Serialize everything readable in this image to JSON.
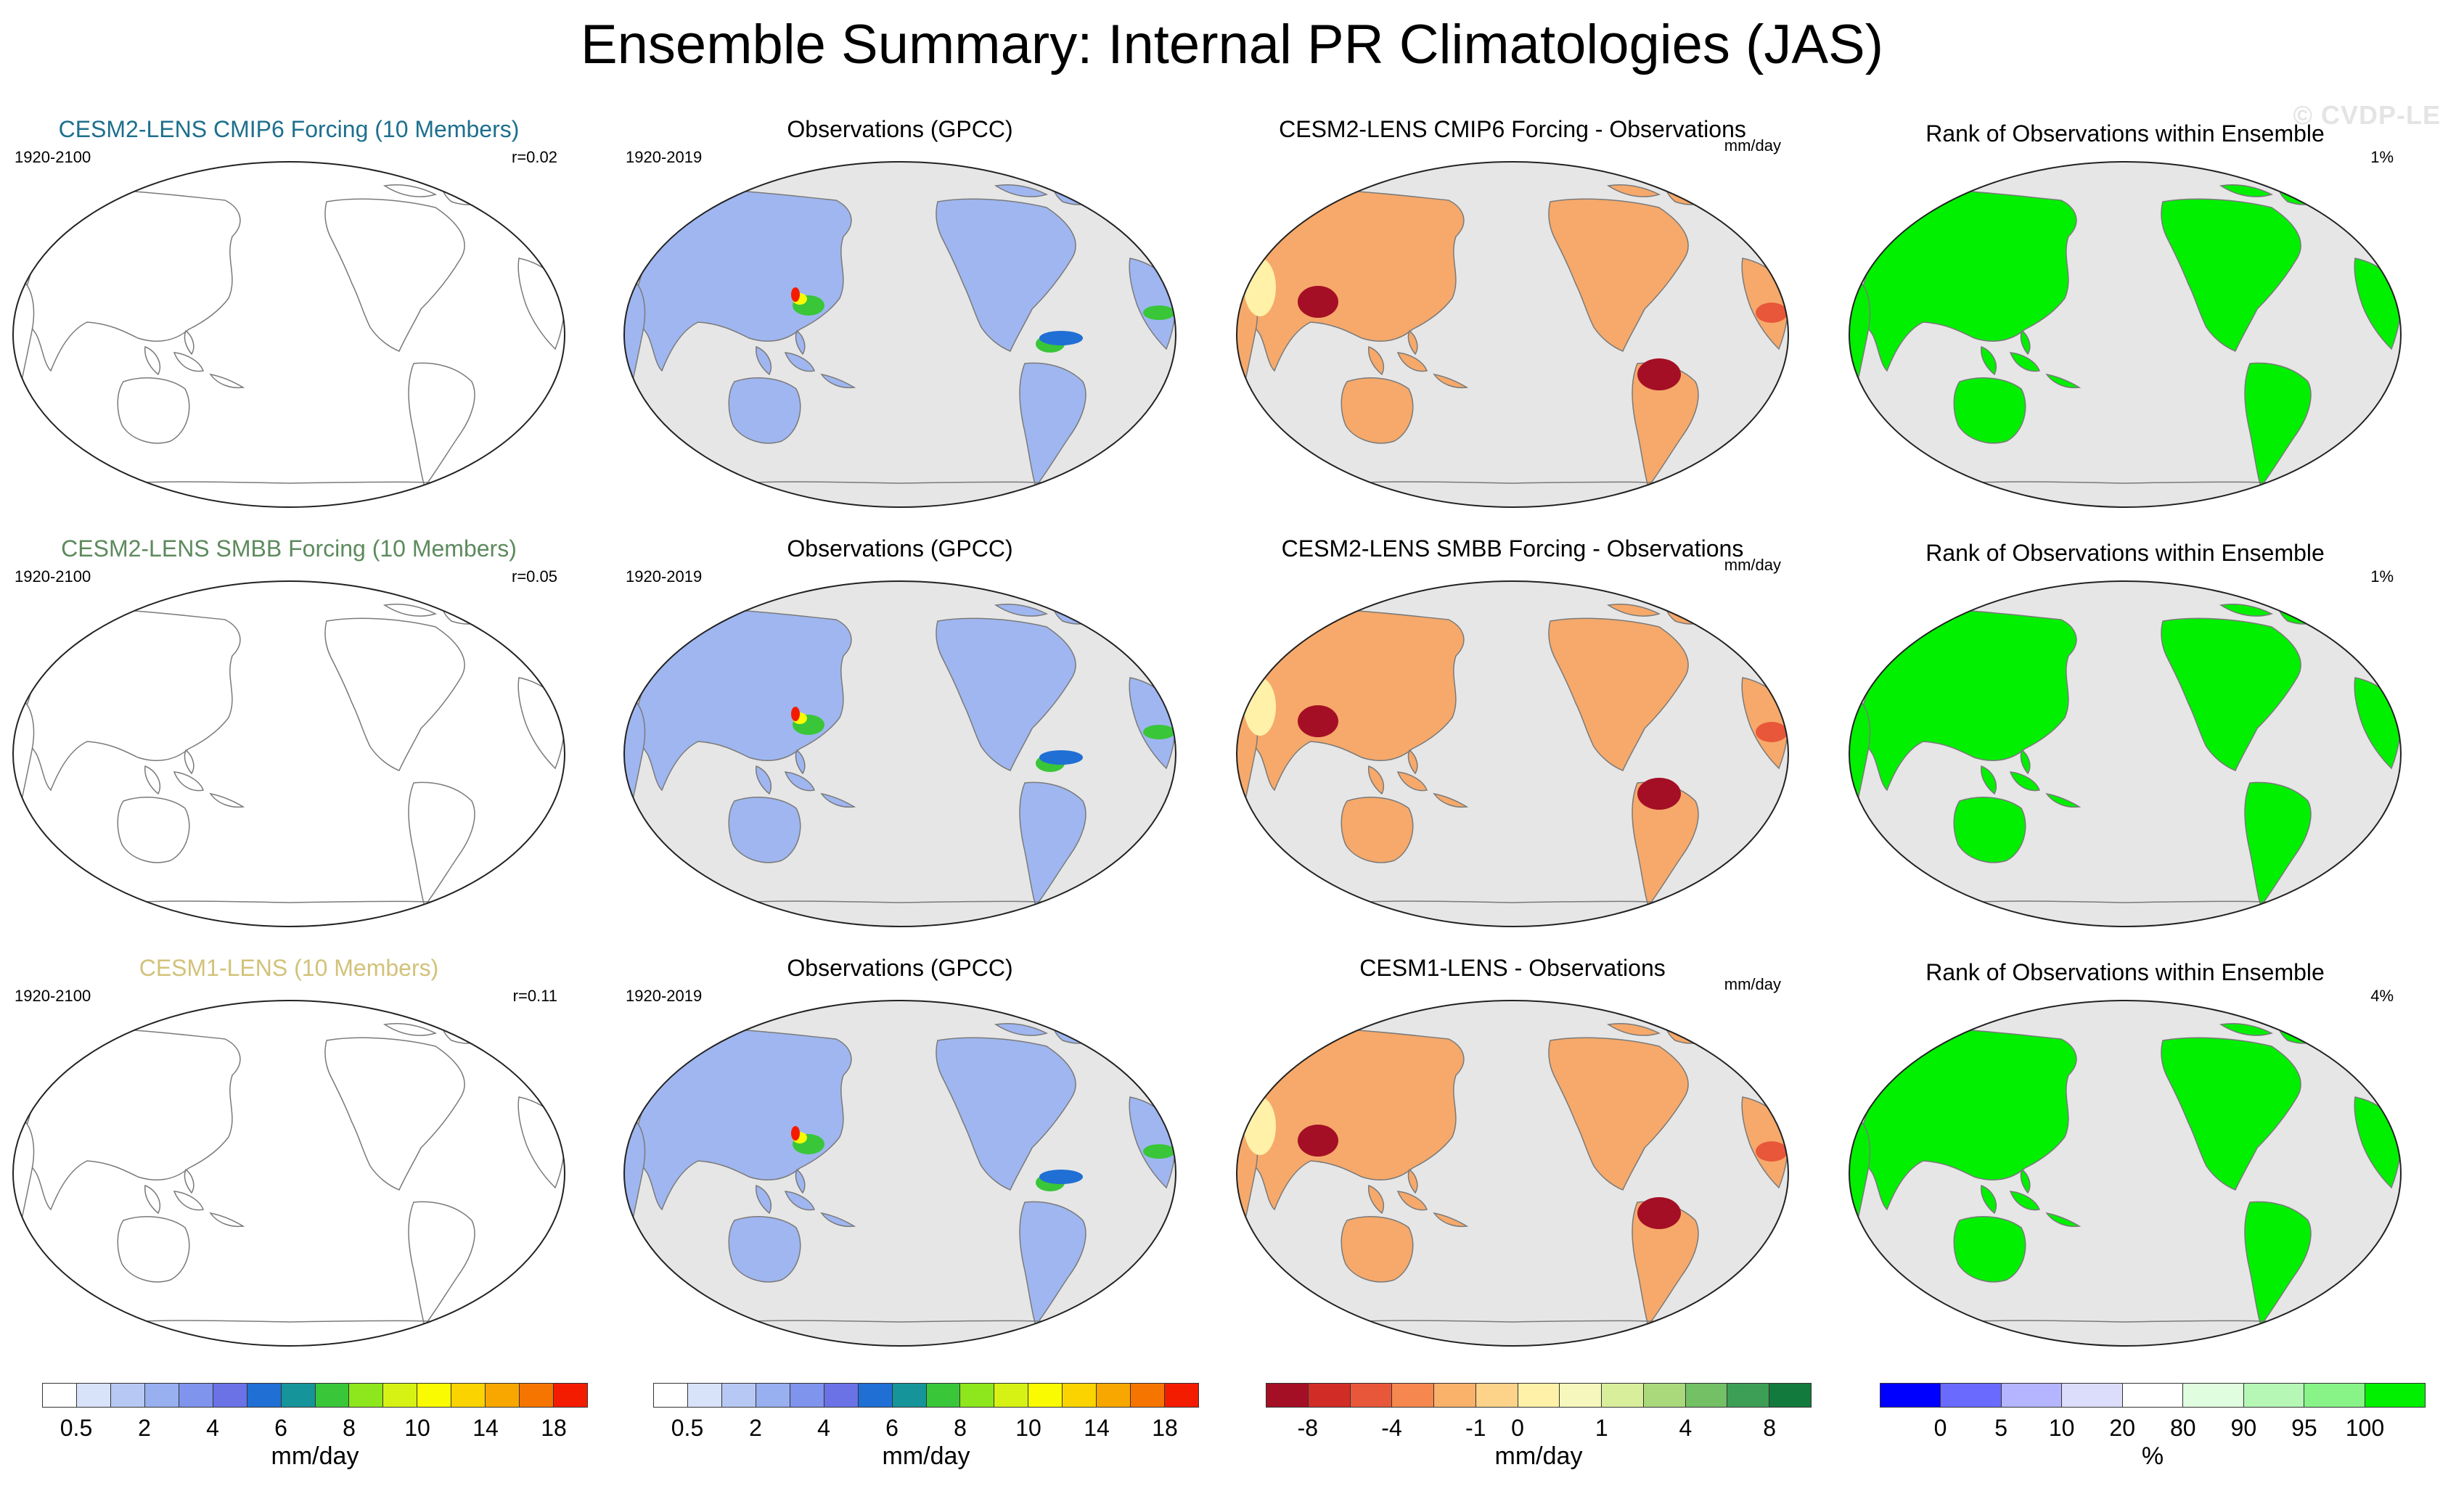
{
  "page": {
    "title": "Ensemble Summary: Internal PR Climatologies (JAS)",
    "watermark": "© CVDP-LE"
  },
  "colors": {
    "ocean": "#e6e6e6",
    "rank_green": "#00f000",
    "coast": "#7a7a7a",
    "row_title_colors": [
      "#1e6f8e",
      "#5d8a5d",
      "#d2c27a"
    ]
  },
  "rows": [
    {
      "model": {
        "title": "CESM2-LENS CMIP6 Forcing (10 Members)",
        "period": "1920-2100",
        "stat": "r=0.02"
      },
      "obs": {
        "title": "Observations (GPCC)",
        "period": "1920-2019"
      },
      "diff": {
        "title": "CESM2-LENS CMIP6 Forcing - Observations",
        "units": "mm/day"
      },
      "rank": {
        "title": "Rank of Observations within Ensemble",
        "stat": "1%"
      }
    },
    {
      "model": {
        "title": "CESM2-LENS SMBB Forcing (10 Members)",
        "period": "1920-2100",
        "stat": "r=0.05"
      },
      "obs": {
        "title": "Observations (GPCC)",
        "period": "1920-2019"
      },
      "diff": {
        "title": "CESM2-LENS SMBB Forcing - Observations",
        "units": "mm/day"
      },
      "rank": {
        "title": "Rank of Observations within Ensemble",
        "stat": "1%"
      }
    },
    {
      "model": {
        "title": "CESM1-LENS (10 Members)",
        "period": "1920-2100",
        "stat": "r=0.11"
      },
      "obs": {
        "title": "Observations (GPCC)",
        "period": "1920-2019"
      },
      "diff": {
        "title": "CESM1-LENS - Observations",
        "units": "mm/day"
      },
      "rank": {
        "title": "Rank of Observations within Ensemble",
        "stat": "4%"
      }
    }
  ],
  "colorbars": {
    "precip": {
      "colors": [
        "#ffffff",
        "#d8e2f8",
        "#b8c8f4",
        "#98aff0",
        "#7f94ec",
        "#6a72e6",
        "#1f6fd4",
        "#15949a",
        "#39c639",
        "#8ee61c",
        "#d6f214",
        "#fafa00",
        "#fbd400",
        "#f8a600",
        "#f57500",
        "#f41c00"
      ],
      "ticks": [
        "0.5",
        "2",
        "4",
        "6",
        "8",
        "10",
        "14",
        "18"
      ],
      "units": "mm/day"
    },
    "diff": {
      "colors": [
        "#a50f26",
        "#d12d26",
        "#e8573a",
        "#f6874f",
        "#fab26b",
        "#fdd38a",
        "#fff1a8",
        "#f6f7bc",
        "#d9ee9b",
        "#a9d97a",
        "#73c065",
        "#3d9e55",
        "#127a3c"
      ],
      "ticks": [
        "-8",
        "-4",
        "-1",
        "0",
        "1",
        "4",
        "8"
      ],
      "units": "mm/day"
    },
    "rank": {
      "colors": [
        "#0000ff",
        "#6a6aff",
        "#b4b4ff",
        "#dcdcfb",
        "#ffffff",
        "#e0fde0",
        "#b6f7b6",
        "#88f488",
        "#00f000"
      ],
      "ticks": [
        "0",
        "5",
        "10",
        "20",
        "80",
        "90",
        "95",
        "100"
      ],
      "units": "%"
    }
  }
}
